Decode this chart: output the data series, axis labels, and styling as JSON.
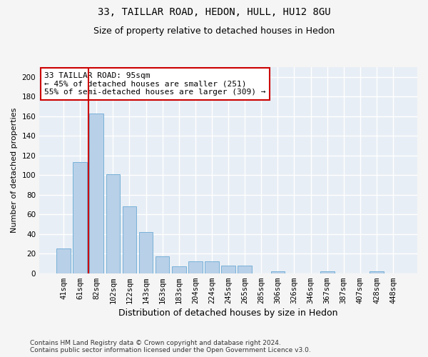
{
  "title": "33, TAILLAR ROAD, HEDON, HULL, HU12 8GU",
  "subtitle": "Size of property relative to detached houses in Hedon",
  "xlabel": "Distribution of detached houses by size in Hedon",
  "ylabel": "Number of detached properties",
  "categories": [
    "41sqm",
    "61sqm",
    "82sqm",
    "102sqm",
    "122sqm",
    "143sqm",
    "163sqm",
    "183sqm",
    "204sqm",
    "224sqm",
    "245sqm",
    "265sqm",
    "285sqm",
    "306sqm",
    "326sqm",
    "346sqm",
    "367sqm",
    "387sqm",
    "407sqm",
    "428sqm",
    "448sqm"
  ],
  "values": [
    25,
    113,
    163,
    101,
    68,
    42,
    17,
    7,
    12,
    12,
    8,
    8,
    0,
    2,
    0,
    0,
    2,
    0,
    0,
    2,
    0
  ],
  "bar_color": "#b8d0e8",
  "bar_edgecolor": "#6aaad4",
  "bg_color": "#e8eef5",
  "grid_color": "#ffffff",
  "annotation_line1": "33 TAILLAR ROAD: 95sqm",
  "annotation_line2": "← 45% of detached houses are smaller (251)",
  "annotation_line3": "55% of semi-detached houses are larger (309) →",
  "annotation_box_facecolor": "#ffffff",
  "annotation_box_edgecolor": "#cc0000",
  "vline_color": "#cc0000",
  "vline_x_index": 1.5,
  "ylim": [
    0,
    210
  ],
  "yticks": [
    0,
    20,
    40,
    60,
    80,
    100,
    120,
    140,
    160,
    180,
    200
  ],
  "footer": "Contains HM Land Registry data © Crown copyright and database right 2024.\nContains public sector information licensed under the Open Government Licence v3.0.",
  "fig_facecolor": "#f5f5f5",
  "title_fontsize": 10,
  "subtitle_fontsize": 9,
  "xlabel_fontsize": 9,
  "ylabel_fontsize": 8,
  "tick_fontsize": 7.5,
  "annotation_fontsize": 8,
  "footer_fontsize": 6.5
}
